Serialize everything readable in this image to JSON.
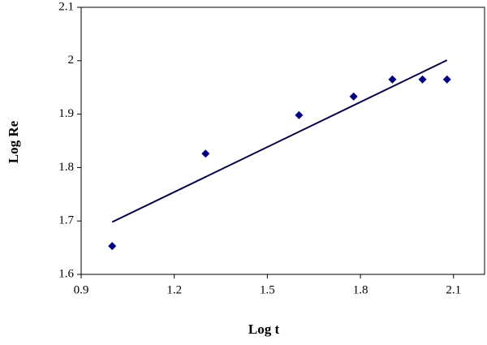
{
  "chart_data": {
    "type": "scatter",
    "x_label": "Log t",
    "y_label": "Log Re",
    "series": [
      {
        "color": "#000080",
        "x": [
          1.0,
          1.301,
          1.602,
          1.778,
          1.903,
          2.0,
          2.079
        ],
        "values": [
          1.653,
          1.826,
          1.898,
          1.933,
          1.965,
          1.965,
          1.965
        ]
      }
    ],
    "trendline": {
      "color": "#000040",
      "x": [
        1.0,
        2.079
      ],
      "values": [
        1.698,
        2.001
      ]
    },
    "xlim": [
      0.9,
      2.2
    ],
    "xticks": [
      0.9,
      1.2,
      1.5,
      1.8,
      2.1
    ],
    "ylim": [
      1.6,
      2.1
    ],
    "yticks": [
      1.6,
      1.7,
      1.8,
      1.9,
      2,
      2.1
    ]
  }
}
